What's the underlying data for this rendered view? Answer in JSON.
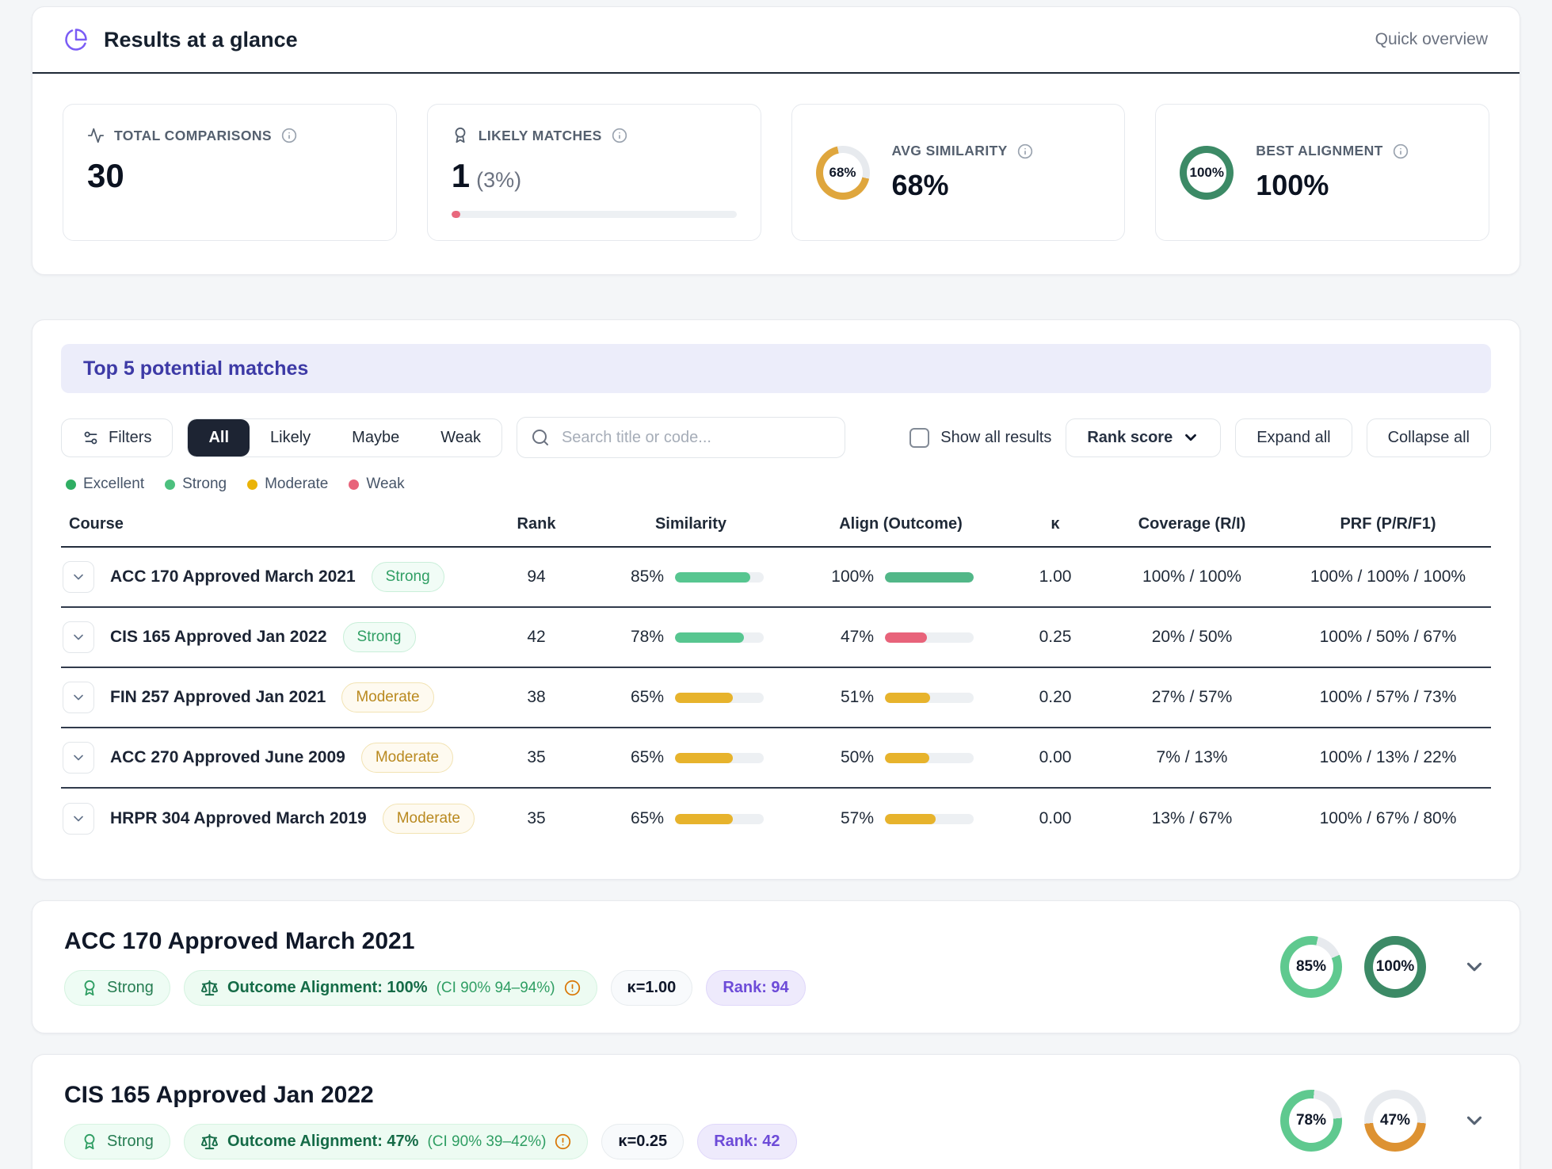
{
  "glance": {
    "title": "Results at a glance",
    "link": "Quick overview",
    "stats": [
      {
        "icon": "activity-icon",
        "label": "TOTAL COMPARISONS",
        "value": "30"
      },
      {
        "icon": "award-icon",
        "label": "LIKELY MATCHES",
        "value": "1",
        "suffix": "(3%)",
        "bar": {
          "pct": 3,
          "color": "#e8687d"
        }
      },
      {
        "label": "AVG SIMILARITY",
        "value": "68%",
        "donut": {
          "pct": 68,
          "color": "#dfa63d",
          "label": "68%",
          "start": 103
        }
      },
      {
        "label": "BEST ALIGNMENT",
        "value": "100%",
        "donut": {
          "pct": 100,
          "color": "#3c8a66",
          "label": "100%",
          "start": 0
        }
      }
    ]
  },
  "matches": {
    "banner": "Top 5 potential matches",
    "filters_label": "Filters",
    "segments": [
      "All",
      "Likely",
      "Maybe",
      "Weak"
    ],
    "active_segment": "All",
    "search_placeholder": "Search title or code...",
    "show_all_label": "Show all results",
    "sort_label": "Rank score",
    "expand_label": "Expand all",
    "collapse_label": "Collapse all",
    "legend": [
      {
        "label": "Excellent",
        "color": "#2fae63"
      },
      {
        "label": "Strong",
        "color": "#4cc07e"
      },
      {
        "label": "Moderate",
        "color": "#eab308"
      },
      {
        "label": "Weak",
        "color": "#e8637a"
      }
    ],
    "columns": [
      "Course",
      "Rank",
      "Similarity",
      "Align (Outcome)",
      "κ",
      "Coverage (R/I)",
      "PRF (P/R/F1)"
    ],
    "rows": [
      {
        "course": "ACC 170 Approved March 2021",
        "badge": "Strong",
        "badge_type": "strong",
        "rank": "94",
        "sim": "85%",
        "sim_bar": {
          "pct": 85,
          "color": "#57c690"
        },
        "align": "100%",
        "align_bar": {
          "pct": 100,
          "color": "#52b788"
        },
        "kappa": "1.00",
        "coverage": "100% / 100%",
        "prf": "100% / 100% / 100%"
      },
      {
        "course": "CIS 165 Approved Jan 2022",
        "badge": "Strong",
        "badge_type": "strong",
        "rank": "42",
        "sim": "78%",
        "sim_bar": {
          "pct": 78,
          "color": "#57c690"
        },
        "align": "47%",
        "align_bar": {
          "pct": 47,
          "color": "#e8637a"
        },
        "kappa": "0.25",
        "coverage": "20% / 50%",
        "prf": "100% / 50% / 67%"
      },
      {
        "course": "FIN 257 Approved Jan 2021",
        "badge": "Moderate",
        "badge_type": "moderate",
        "rank": "38",
        "sim": "65%",
        "sim_bar": {
          "pct": 65,
          "color": "#e7b32c"
        },
        "align": "51%",
        "align_bar": {
          "pct": 51,
          "color": "#e7b32c"
        },
        "kappa": "0.20",
        "coverage": "27% / 57%",
        "prf": "100% / 57% / 73%"
      },
      {
        "course": "ACC 270 Approved June 2009",
        "badge": "Moderate",
        "badge_type": "moderate",
        "rank": "35",
        "sim": "65%",
        "sim_bar": {
          "pct": 65,
          "color": "#e7b32c"
        },
        "align": "50%",
        "align_bar": {
          "pct": 50,
          "color": "#e7b32c"
        },
        "kappa": "0.00",
        "coverage": "7% / 13%",
        "prf": "100% / 13% / 22%"
      },
      {
        "course": "HRPR 304 Approved March 2019",
        "badge": "Moderate",
        "badge_type": "moderate",
        "rank": "35",
        "sim": "65%",
        "sim_bar": {
          "pct": 65,
          "color": "#e7b32c"
        },
        "align": "57%",
        "align_bar": {
          "pct": 57,
          "color": "#e7b32c"
        },
        "kappa": "0.00",
        "coverage": "13% / 67%",
        "prf": "100% / 67% / 80%"
      }
    ]
  },
  "details": [
    {
      "title": "ACC 170 Approved March 2021",
      "strength": "Strong",
      "outcome_main": "Outcome Alignment: 100%",
      "outcome_ci": "(CI 90% 94–94%)",
      "kappa": "κ=1.00",
      "rank": "Rank: 94",
      "donut1": {
        "pct": 85,
        "color": "#5fc98f",
        "label": "85%",
        "start": 67
      },
      "donut2": {
        "pct": 100,
        "color": "#3c8a66",
        "label": "100%",
        "start": 0
      }
    },
    {
      "title": "CIS 165 Approved Jan 2022",
      "strength": "Strong",
      "outcome_main": "Outcome Alignment: 47%",
      "outcome_ci": "(CI 90% 39–42%)",
      "kappa": "κ=0.25",
      "rank": "Rank: 42",
      "donut1": {
        "pct": 78,
        "color": "#5fc98f",
        "label": "78%",
        "start": 85
      },
      "donut2": {
        "pct": 47,
        "color": "#dd9232",
        "label": "47%",
        "start": 95
      }
    }
  ]
}
